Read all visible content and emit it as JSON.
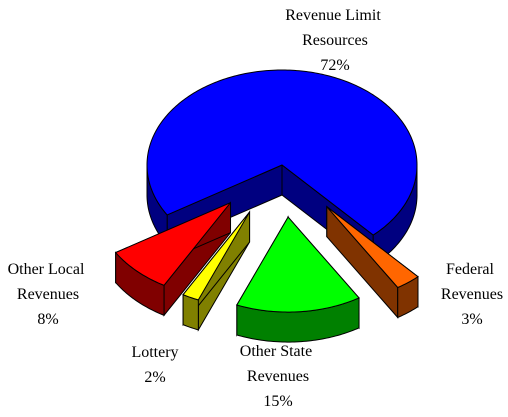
{
  "chart_data": {
    "type": "pie3d",
    "categories": [
      "Revenue Limit Resources",
      "Federal Revenues",
      "Other State Revenues",
      "Lottery",
      "Other Local Revenues"
    ],
    "values": [
      72,
      3,
      15,
      2,
      8
    ],
    "value_labels": [
      "72%",
      "3%",
      "15%",
      "2%",
      "8%"
    ],
    "colors": [
      "#0000ff",
      "#ff6600",
      "#00ff00",
      "#ffff00",
      "#ff0000"
    ]
  }
}
